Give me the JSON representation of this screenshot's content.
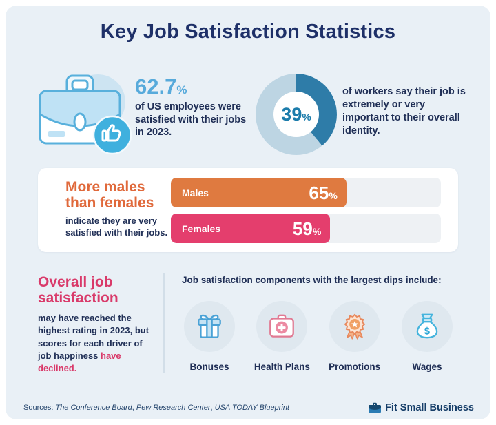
{
  "theme": {
    "panel_bg": "#e9f0f6",
    "navy": "#202f56",
    "title_color": "#1e3068",
    "stat_blue": "#57aadb",
    "donut_dark": "#2e7ca8",
    "donut_light": "#bdd5e3",
    "donut_text": "#1c7cab",
    "orange": "#e0693b",
    "bar_orange": "#df7a40",
    "pink": "#d93a6a",
    "bar_pink": "#e43e6d"
  },
  "page": {
    "title": "Key Job Satisfaction Statistics"
  },
  "stats": {
    "employees": {
      "value": "62.7",
      "unit": "%",
      "description": "of US employees were satisfied with their jobs in 2023.",
      "icon": "briefcase-thumbs-up-icon"
    },
    "identity": {
      "value": "39",
      "unit": "%",
      "description": "of workers say their job is extremely or very important to their overall identity."
    }
  },
  "gender_card": {
    "heading_line1": "More males",
    "heading_line2": "than females",
    "subtext": "indicate they are very satisfied with their jobs.",
    "unit": "%",
    "bars": [
      {
        "label": "Males",
        "value": "65"
      },
      {
        "label": "Females",
        "value": "59"
      }
    ]
  },
  "decline_section": {
    "heading_line1": "Overall job",
    "heading_line2": "satisfaction",
    "body": "may have reached the highest rating in 2023, but scores for each driver of job happiness ",
    "highlight": "have declined.",
    "intro_prefix": "Job satisfaction components with the ",
    "intro_bold": "largest dips",
    "intro_suffix": " include:",
    "components": [
      {
        "label": "Bonuses",
        "icon": "gift-icon"
      },
      {
        "label": "Health Plans",
        "icon": "first-aid-kit-icon"
      },
      {
        "label": "Promotions",
        "icon": "award-badge-icon"
      },
      {
        "label": "Wages",
        "icon": "money-bag-icon"
      }
    ]
  },
  "footer": {
    "sources_label": "Sources: ",
    "separator": ", ",
    "sources": [
      "The Conference Board",
      "Pew Research Center",
      "USA TODAY Blueprint"
    ],
    "brand": "Fit Small Business"
  },
  "chart_data": [
    {
      "type": "pie",
      "title": "Workers who say their job is extremely or very important to their overall identity",
      "labels": [
        "Extremely or very important",
        "Other"
      ],
      "values": [
        39,
        61
      ],
      "center_label": "39%",
      "style": "donut"
    },
    {
      "type": "bar",
      "orientation": "horizontal",
      "title": "Very satisfied with their jobs, by gender",
      "categories": [
        "Males",
        "Females"
      ],
      "values": [
        65,
        59
      ],
      "unit": "%",
      "xlim": [
        0,
        100
      ],
      "colors": [
        "#df7a40",
        "#e43e6d"
      ]
    },
    {
      "type": "stat",
      "title": "US employees satisfied with their jobs in 2023",
      "value": 62.7,
      "unit": "%"
    }
  ]
}
